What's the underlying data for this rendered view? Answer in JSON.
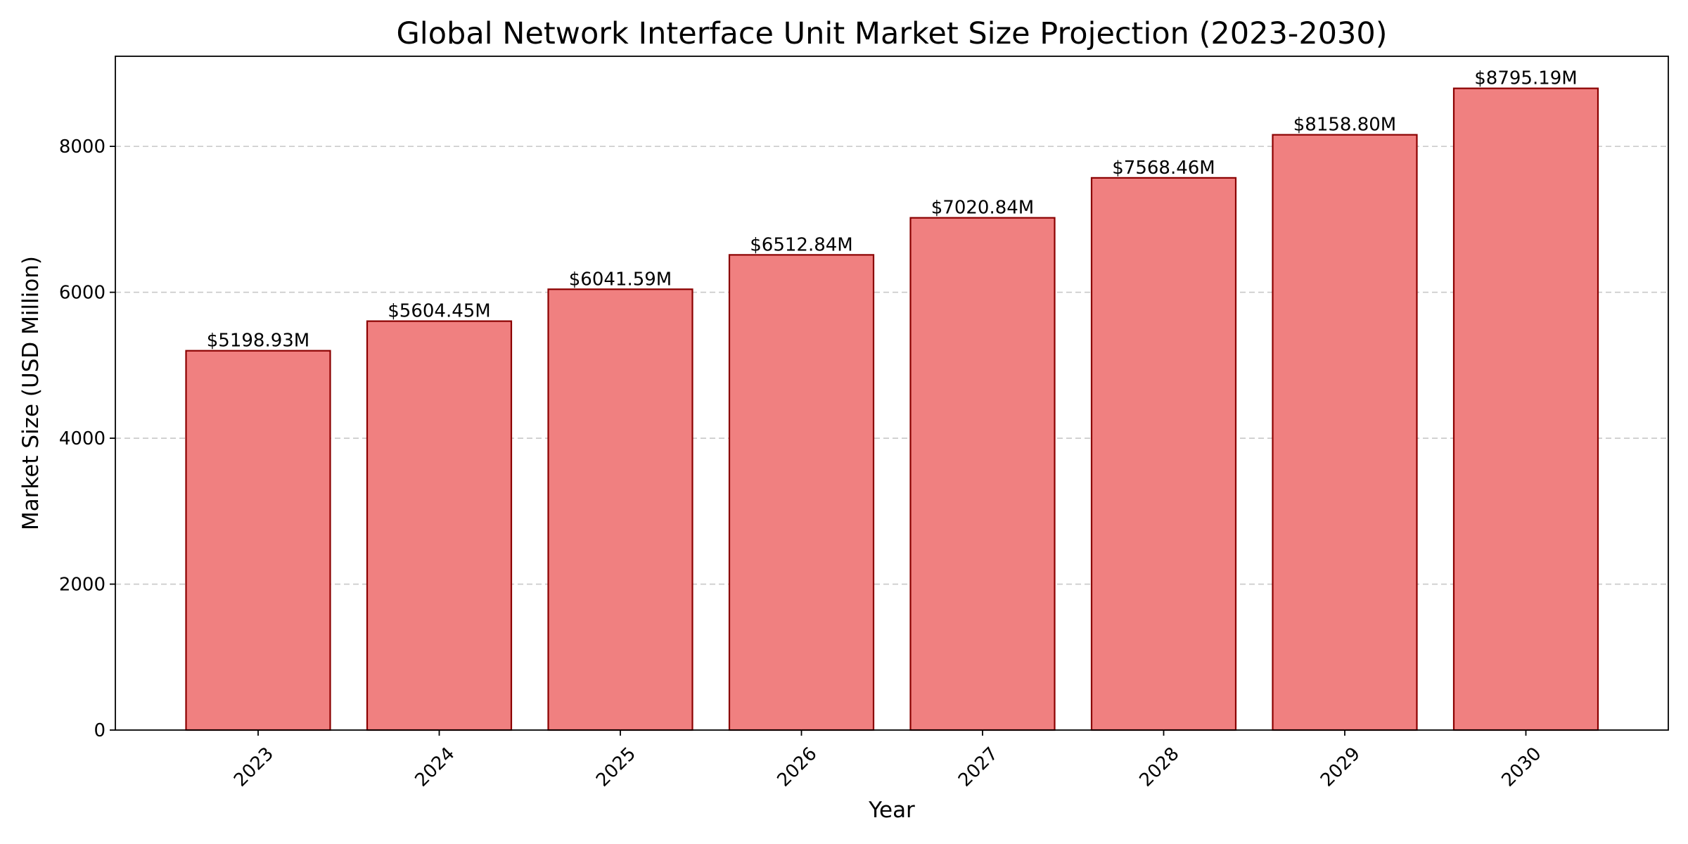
{
  "chart_data": {
    "type": "bar",
    "title": "Global Network Interface Unit Market Size Projection (2023-2030)",
    "xlabel": "Year",
    "ylabel": "Market Size (USD Million)",
    "categories": [
      "2023",
      "2024",
      "2025",
      "2026",
      "2027",
      "2028",
      "2029",
      "2030"
    ],
    "values": [
      5198.93,
      5604.45,
      6041.59,
      6512.84,
      7020.84,
      7568.46,
      8158.8,
      8795.19
    ],
    "data_labels": [
      "$5198.93M",
      "$5604.45M",
      "$6041.59M",
      "$6512.84M",
      "$7020.84M",
      "$7568.46M",
      "$8158.80M",
      "$8795.19M"
    ],
    "ylim": [
      0,
      9235
    ],
    "y_ticks": [
      0,
      2000,
      4000,
      6000,
      8000
    ],
    "grid": "y-dashed",
    "x_tick_rotation": -45,
    "colors": {
      "bar_fill": "#f08080",
      "bar_edge": "#8b0000",
      "grid": "#c8c8c8",
      "axis": "#000000"
    }
  }
}
